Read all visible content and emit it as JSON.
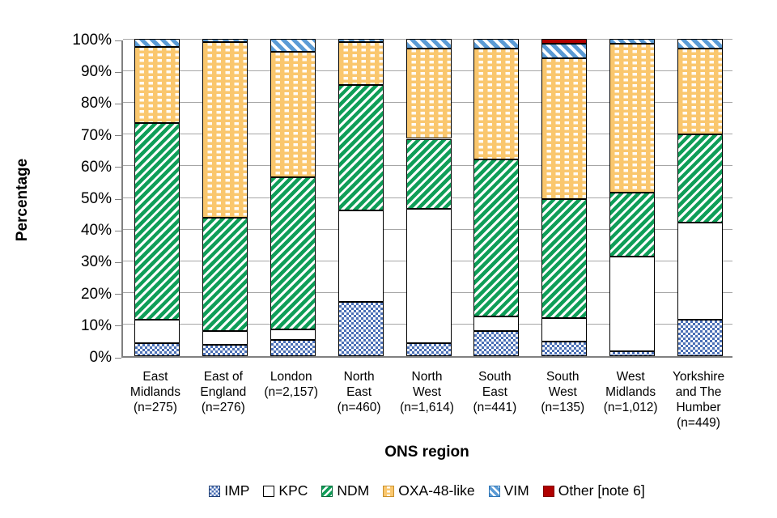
{
  "chart_data": {
    "type": "bar",
    "subtype": "100-percent-stacked-vertical",
    "title": "",
    "xlabel": "ONS region",
    "ylabel": "Percentage",
    "ylim": [
      0,
      100
    ],
    "grid": "horizontal-major-10pct",
    "legend_position": "bottom-center",
    "y_ticks": [
      "0%",
      "10%",
      "20%",
      "30%",
      "40%",
      "50%",
      "60%",
      "70%",
      "80%",
      "90%",
      "100%"
    ],
    "categories": [
      "East Midlands (n=275)",
      "East of England (n=276)",
      "London (n=2,157)",
      "North East (n=460)",
      "North West (n=1,614)",
      "South East (n=441)",
      "South West (n=135)",
      "West Midlands (n=1,012)",
      "Yorkshire and The Humber (n=449)"
    ],
    "category_label_lines": [
      [
        "East",
        "Midlands",
        "(n=275)"
      ],
      [
        "East of",
        "England",
        "(n=276)"
      ],
      [
        "London",
        "(n=2,157)"
      ],
      [
        "North",
        "East",
        "(n=460)"
      ],
      [
        "North",
        "West",
        "(n=1,614)"
      ],
      [
        "South",
        "East",
        "(n=441)"
      ],
      [
        "South",
        "West",
        "(n=135)"
      ],
      [
        "West",
        "Midlands",
        "(n=1,012)"
      ],
      [
        "Yorkshire",
        "and The",
        "Humber",
        "(n=449)"
      ]
    ],
    "series": [
      {
        "name": "IMP",
        "key": "imp",
        "pattern": "blue-white-checker",
        "fill": "#4a6fb5",
        "swatch_border": "#1f3f77",
        "values": [
          4,
          3.5,
          5,
          17,
          4,
          8,
          4.5,
          1.5,
          11.5
        ]
      },
      {
        "name": "KPC",
        "key": "kpc",
        "pattern": "solid-white",
        "fill": "#ffffff",
        "swatch_border": "#000000",
        "values": [
          7.5,
          4.5,
          3.5,
          29,
          42.5,
          4.5,
          7.5,
          30,
          30.5
        ]
      },
      {
        "name": "NDM",
        "key": "ndm",
        "pattern": "green-diagonal-stripes",
        "fill": "#0f9e58",
        "swatch_border": "#086b3a",
        "values": [
          62,
          35.5,
          48,
          39.5,
          22,
          49.5,
          37.5,
          20,
          28
        ]
      },
      {
        "name": "OXA-48-like",
        "key": "oxa",
        "pattern": "tan-white-dashes",
        "fill": "#fac76e",
        "swatch_border": "#c9912e",
        "values": [
          24,
          55.5,
          39.5,
          13.5,
          28.5,
          35,
          44.5,
          47,
          27
        ]
      },
      {
        "name": "VIM",
        "key": "vim",
        "pattern": "blue-diagonal-stripes",
        "fill": "#5b9bd5",
        "swatch_border": "#2e75b6",
        "values": [
          2.5,
          1,
          4,
          1,
          3,
          3,
          4.5,
          1.5,
          3
        ]
      },
      {
        "name": "Other [note 6]",
        "key": "other",
        "pattern": "solid-dark-red",
        "fill": "#b00000",
        "swatch_border": "#7f0000",
        "values": [
          0,
          0,
          0,
          0,
          0,
          0,
          1.5,
          0,
          0
        ]
      }
    ],
    "colors": {
      "gridline": "#a6a6a6",
      "axis": "#808080",
      "segment_border": "#000000",
      "background": "#ffffff"
    }
  }
}
